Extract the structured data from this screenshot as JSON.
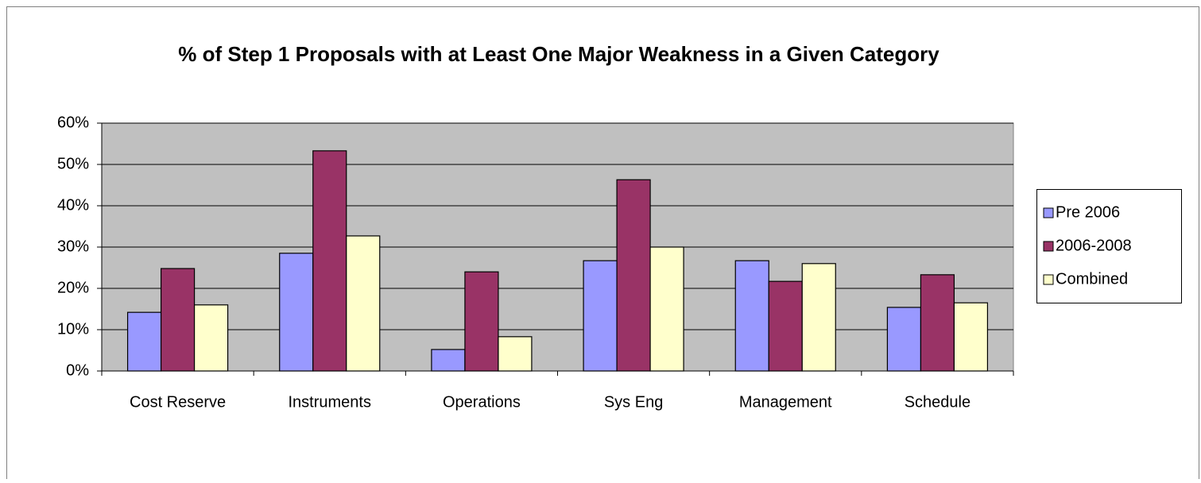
{
  "chart_data": {
    "type": "bar",
    "title": "% of Step 1 Proposals with at Least One Major Weakness in a Given Category",
    "categories": [
      "Cost Reserve",
      "Instruments",
      "Operations",
      "Sys Eng",
      "Management",
      "Schedule"
    ],
    "series": [
      {
        "name": "Pre 2006",
        "color": "#9999ff",
        "values": [
          14.2,
          28.5,
          5.2,
          26.7,
          26.7,
          15.4
        ]
      },
      {
        "name": "2006-2008",
        "color": "#993366",
        "values": [
          24.8,
          53.3,
          24.0,
          46.3,
          21.7,
          23.3
        ]
      },
      {
        "name": "Combined",
        "color": "#ffffcc",
        "values": [
          16.0,
          32.7,
          8.3,
          30.0,
          26.0,
          16.5
        ]
      }
    ],
    "ylim": [
      0,
      60
    ],
    "yticks": [
      {
        "value": 0,
        "label": "0%"
      },
      {
        "value": 10,
        "label": "10%"
      },
      {
        "value": 20,
        "label": "20%"
      },
      {
        "value": 30,
        "label": "30%"
      },
      {
        "value": 40,
        "label": "40%"
      },
      {
        "value": 50,
        "label": "50%"
      },
      {
        "value": 60,
        "label": "60%"
      }
    ],
    "grid": true,
    "legend": "right"
  }
}
